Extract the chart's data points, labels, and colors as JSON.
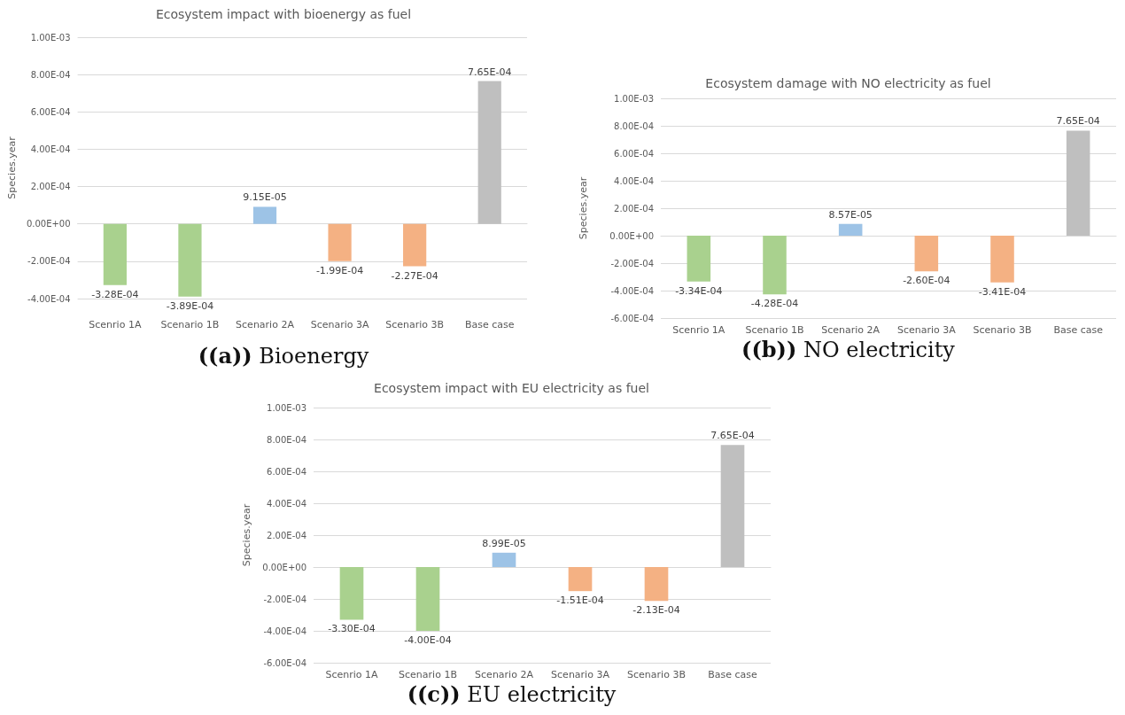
{
  "chart_data": [
    {
      "type": "bar",
      "title": "Ecosystem impact with bioenergy as fuel",
      "ylabel": "Species.year",
      "annotations": [
        "((a)) Bioenergy"
      ],
      "categories": [
        "Scenrio 1A",
        "Scenario 1B",
        "Scenario 2A",
        "Scenario 3A",
        "Scenario 3B",
        "Base case"
      ],
      "values": [
        -0.000328,
        -0.000389,
        9.15e-05,
        -0.000199,
        -0.000227,
        0.000765
      ],
      "value_labels": [
        "-3.28E-04",
        "-3.89E-04",
        "9.15E-05",
        "-1.99E-04",
        "-2.27E-04",
        "7.65E-04"
      ],
      "colors": [
        "#a9d18e",
        "#a9d18e",
        "#9dc3e6",
        "#f4b183",
        "#f4b183",
        "#bfbfbf"
      ],
      "ylim": [
        -0.0004,
        0.001
      ],
      "yticks": [
        {
          "value": -0.0004,
          "label": "-4.00E-04"
        },
        {
          "value": -0.0002,
          "label": "-2.00E-04"
        },
        {
          "value": 0,
          "label": "0.00E+00"
        },
        {
          "value": 0.0002,
          "label": "2.00E-04"
        },
        {
          "value": 0.0004,
          "label": "4.00E-04"
        },
        {
          "value": 0.0006,
          "label": "6.00E-04"
        },
        {
          "value": 0.0008,
          "label": "8.00E-04"
        },
        {
          "value": 0.001,
          "label": "1.00E-03"
        }
      ],
      "grid": "y"
    },
    {
      "type": "bar",
      "title": "Ecosystem damage with NO electricity as fuel",
      "ylabel": "Species.year",
      "annotations": [
        "((b)) NO electricity"
      ],
      "categories": [
        "Scenrio 1A",
        "Scenario 1B",
        "Scenario 2A",
        "Scenario 3A",
        "Scenario 3B",
        "Base case"
      ],
      "values": [
        -0.000334,
        -0.000428,
        8.57e-05,
        -0.00026,
        -0.000341,
        0.000765
      ],
      "value_labels": [
        "-3.34E-04",
        "-4.28E-04",
        "8.57E-05",
        "-2.60E-04",
        "-3.41E-04",
        "7.65E-04"
      ],
      "colors": [
        "#a9d18e",
        "#a9d18e",
        "#9dc3e6",
        "#f4b183",
        "#f4b183",
        "#bfbfbf"
      ],
      "ylim": [
        -0.0006,
        0.001
      ],
      "yticks": [
        {
          "value": -0.0006,
          "label": "-6.00E-04"
        },
        {
          "value": -0.0004,
          "label": "-4.00E-04"
        },
        {
          "value": -0.0002,
          "label": "-2.00E-04"
        },
        {
          "value": 0,
          "label": "0.00E+00"
        },
        {
          "value": 0.0002,
          "label": "2.00E-04"
        },
        {
          "value": 0.0004,
          "label": "4.00E-04"
        },
        {
          "value": 0.0006,
          "label": "6.00E-04"
        },
        {
          "value": 0.0008,
          "label": "8.00E-04"
        },
        {
          "value": 0.001,
          "label": "1.00E-03"
        }
      ],
      "grid": "y"
    },
    {
      "type": "bar",
      "title": "Ecosystem impact with EU electricity as fuel",
      "ylabel": "Species.year",
      "annotations": [
        "((c)) EU electricity"
      ],
      "categories": [
        "Scenrio 1A",
        "Scenario 1B",
        "Scenario 2A",
        "Scenario 3A",
        "Scenario 3B",
        "Base case"
      ],
      "values": [
        -0.00033,
        -0.0004,
        8.99e-05,
        -0.000151,
        -0.000213,
        0.000765
      ],
      "value_labels": [
        "-3.30E-04",
        "-4.00E-04",
        "8.99E-05",
        "-1.51E-04",
        "-2.13E-04",
        "7.65E-04"
      ],
      "colors": [
        "#a9d18e",
        "#a9d18e",
        "#9dc3e6",
        "#f4b183",
        "#f4b183",
        "#bfbfbf"
      ],
      "ylim": [
        -0.0006,
        0.001
      ],
      "yticks": [
        {
          "value": -0.0006,
          "label": "-6.00E-04"
        },
        {
          "value": -0.0004,
          "label": "-4.00E-04"
        },
        {
          "value": -0.0002,
          "label": "-2.00E-04"
        },
        {
          "value": 0,
          "label": "0.00E+00"
        },
        {
          "value": 0.0002,
          "label": "2.00E-04"
        },
        {
          "value": 0.0004,
          "label": "4.00E-04"
        },
        {
          "value": 0.0006,
          "label": "6.00E-04"
        },
        {
          "value": 0.0008,
          "label": "8.00E-04"
        },
        {
          "value": 0.001,
          "label": "1.00E-03"
        }
      ],
      "grid": "y"
    }
  ]
}
